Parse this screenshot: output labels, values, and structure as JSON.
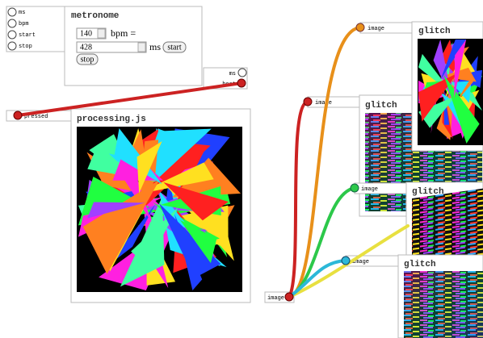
{
  "metronome": {
    "title": "metronome",
    "inputs": [
      "ms",
      "bpm",
      "start",
      "stop"
    ],
    "bpm_value": 140,
    "bpm_label": "bpm =",
    "ms_value": 428,
    "ms_label": "ms",
    "buttons": [
      "start",
      "stop"
    ],
    "outputs": [
      "ms",
      "beat"
    ]
  },
  "processing": {
    "title": "processing.js",
    "inputs": [
      "pressed"
    ],
    "outputs": [
      "image"
    ]
  },
  "glitches": [
    {
      "title": "glitch",
      "input": "image"
    },
    {
      "title": "glitch",
      "input": "image"
    },
    {
      "title": "glitch",
      "input": "image"
    },
    {
      "title": "glitch",
      "input": "image"
    }
  ]
}
